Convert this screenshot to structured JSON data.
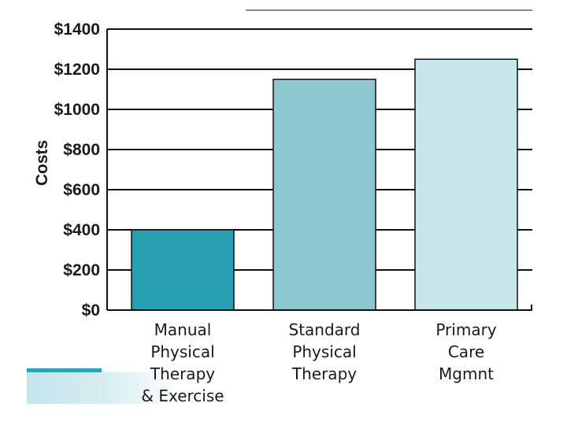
{
  "chart_data": {
    "type": "bar",
    "title": "",
    "xlabel": "",
    "ylabel": "Costs",
    "ylim": [
      0,
      1400
    ],
    "yticks": [
      0,
      200,
      400,
      600,
      800,
      1000,
      1200,
      1400
    ],
    "ytick_labels": [
      "$0",
      "$200",
      "$400",
      "$600",
      "$800",
      "$1000",
      "$1200",
      "$1400"
    ],
    "grid": true,
    "legend": "none",
    "categories": [
      [
        "Manual",
        "Physical",
        "Therapy",
        "& Exercise"
      ],
      [
        "Standard",
        "Physical",
        "Therapy"
      ],
      [
        "Primary",
        "Care",
        "Mgmnt"
      ]
    ],
    "values": [
      400,
      1150,
      1250
    ],
    "colors": [
      "#279fb2",
      "#8fc8d0",
      "#c5e5e8"
    ]
  }
}
